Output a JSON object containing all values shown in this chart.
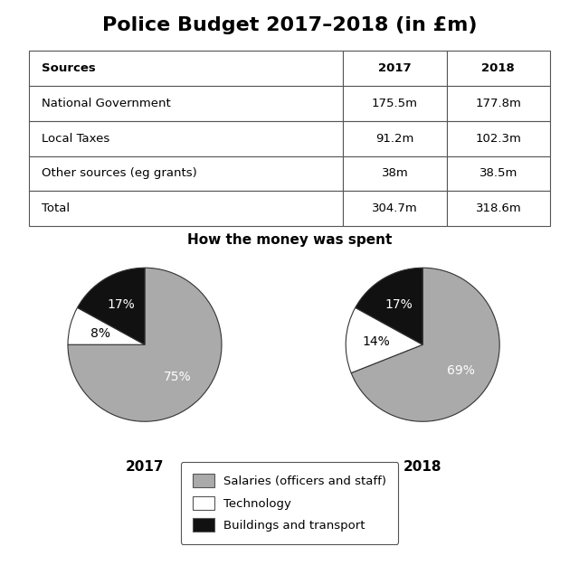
{
  "title": "Police Budget 2017–2018 (in £m)",
  "table": {
    "headers": [
      "Sources",
      "2017",
      "2018"
    ],
    "rows": [
      [
        "National Government",
        "175.5m",
        "177.8m"
      ],
      [
        "Local Taxes",
        "91.2m",
        "102.3m"
      ],
      [
        "Other sources (eg grants)",
        "38m",
        "38.5m"
      ],
      [
        "Total",
        "304.7m",
        "318.6m"
      ]
    ]
  },
  "pie_subtitle": "How the money was spent",
  "pie_2017": {
    "label": "2017",
    "values": [
      75,
      8,
      17
    ],
    "colors": [
      "#aaaaaa",
      "#ffffff",
      "#111111"
    ],
    "labels": [
      "75%",
      "8%",
      "17%"
    ],
    "label_colors": [
      "white",
      "black",
      "white"
    ]
  },
  "pie_2018": {
    "label": "2018",
    "values": [
      69,
      14,
      17
    ],
    "colors": [
      "#aaaaaa",
      "#ffffff",
      "#111111"
    ],
    "labels": [
      "69%",
      "14%",
      "17%"
    ],
    "label_colors": [
      "white",
      "black",
      "white"
    ]
  },
  "legend_labels": [
    "Salaries (officers and staff)",
    "Technology",
    "Buildings and transport"
  ],
  "legend_colors": [
    "#aaaaaa",
    "#ffffff",
    "#111111"
  ],
  "background_color": "#ffffff"
}
